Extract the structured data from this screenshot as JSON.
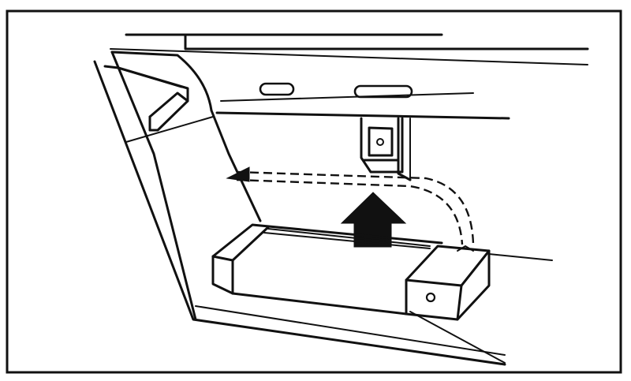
{
  "figure": {
    "description_colors": {
      "ink": "#111111",
      "paper": "#ffffff"
    },
    "caption": ""
  }
}
